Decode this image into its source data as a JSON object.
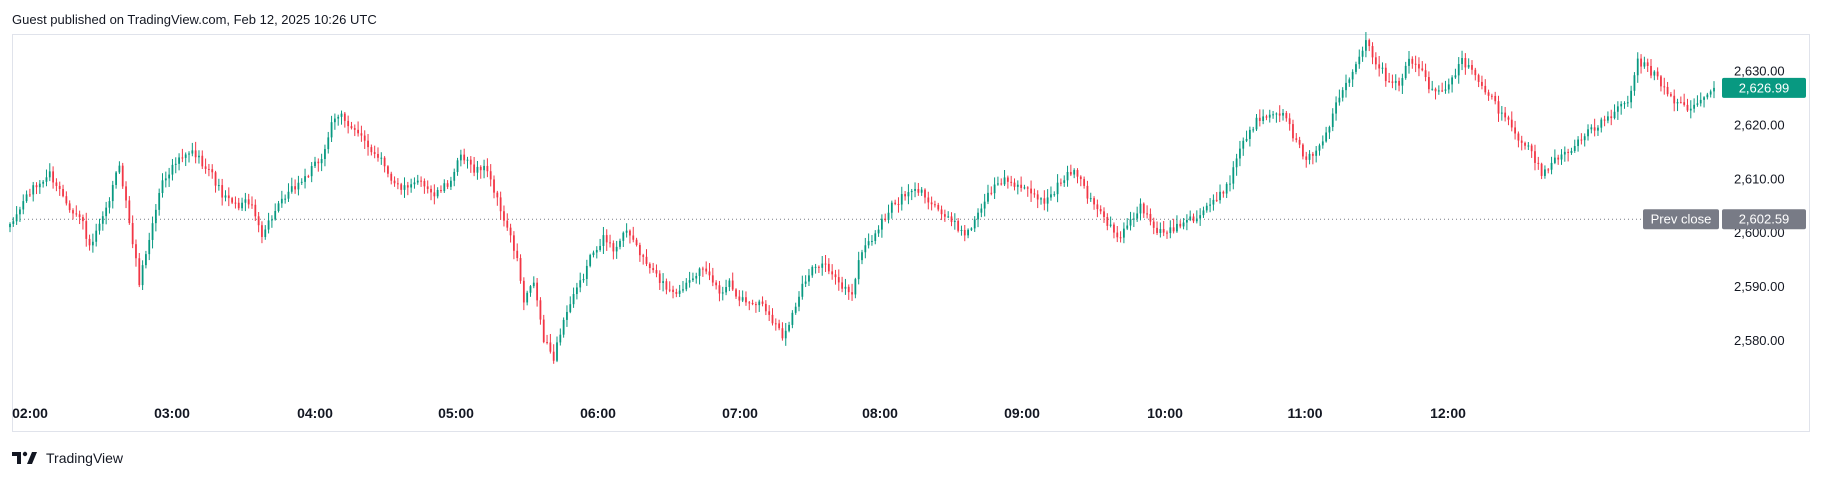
{
  "header": {
    "text": "Guest published on TradingView.com, Feb 12, 2025 10:26 UTC"
  },
  "footer": {
    "brand": "TradingView"
  },
  "colors": {
    "up": "#089981",
    "down": "#f23645",
    "prev_close_badge": "#787b86",
    "last_price_badge": "#089981"
  },
  "chart_data": {
    "type": "candlestick",
    "x_ticks": [
      "02:00",
      "03:00",
      "04:00",
      "05:00",
      "06:00",
      "07:00",
      "08:00",
      "09:00",
      "10:00",
      "11:00",
      "12:00"
    ],
    "y_ticks": [
      "2,580.00",
      "2,590.00",
      "2,600.00",
      "2,610.00",
      "2,620.00",
      "2,630.00"
    ],
    "y_tick_values": [
      2580,
      2590,
      2600,
      2610,
      2620,
      2630
    ],
    "ylim": [
      2569,
      2637
    ],
    "x_start": "01:45",
    "x_end": "12:36",
    "prev_close": {
      "label": "Prev close",
      "value": 2602.59,
      "value_label": "2,602.59"
    },
    "last_price": {
      "value": 2626.99,
      "value_label": "2,626.99"
    },
    "path_anchors": [
      [
        0,
        2601
      ],
      [
        5,
        2607
      ],
      [
        12,
        2611
      ],
      [
        18,
        2605
      ],
      [
        22,
        2602
      ],
      [
        24,
        2597
      ],
      [
        29,
        2604
      ],
      [
        33,
        2613
      ],
      [
        36,
        2602
      ],
      [
        39,
        2591
      ],
      [
        42,
        2599
      ],
      [
        46,
        2610
      ],
      [
        50,
        2613
      ],
      [
        55,
        2615
      ],
      [
        60,
        2612
      ],
      [
        64,
        2607
      ],
      [
        68,
        2605
      ],
      [
        72,
        2606
      ],
      [
        76,
        2600
      ],
      [
        80,
        2604
      ],
      [
        85,
        2608
      ],
      [
        90,
        2611
      ],
      [
        94,
        2614
      ],
      [
        97,
        2620
      ],
      [
        100,
        2622
      ],
      [
        104,
        2619
      ],
      [
        108,
        2616
      ],
      [
        112,
        2614
      ],
      [
        116,
        2609
      ],
      [
        120,
        2608
      ],
      [
        124,
        2610
      ],
      [
        128,
        2607
      ],
      [
        132,
        2609
      ],
      [
        136,
        2614
      ],
      [
        140,
        2612
      ],
      [
        144,
        2612
      ],
      [
        147,
        2606
      ],
      [
        150,
        2601
      ],
      [
        153,
        2595
      ],
      [
        155,
        2587
      ],
      [
        158,
        2591
      ],
      [
        161,
        2580
      ],
      [
        164,
        2577
      ],
      [
        167,
        2584
      ],
      [
        170,
        2588
      ],
      [
        173,
        2592
      ],
      [
        176,
        2597
      ],
      [
        179,
        2599
      ],
      [
        182,
        2597
      ],
      [
        185,
        2600
      ],
      [
        188,
        2599
      ],
      [
        191,
        2595
      ],
      [
        195,
        2592
      ],
      [
        198,
        2590
      ],
      [
        202,
        2589
      ],
      [
        205,
        2592
      ],
      [
        208,
        2593
      ],
      [
        211,
        2592
      ],
      [
        214,
        2589
      ],
      [
        217,
        2591
      ],
      [
        220,
        2588
      ],
      [
        223,
        2587
      ],
      [
        227,
        2587
      ],
      [
        230,
        2584
      ],
      [
        233,
        2581
      ],
      [
        236,
        2585
      ],
      [
        239,
        2590
      ],
      [
        242,
        2593
      ],
      [
        245,
        2595
      ],
      [
        248,
        2592
      ],
      [
        251,
        2590
      ],
      [
        254,
        2589
      ],
      [
        257,
        2597
      ],
      [
        260,
        2599
      ],
      [
        263,
        2602
      ],
      [
        266,
        2605
      ],
      [
        270,
        2607
      ],
      [
        274,
        2608
      ],
      [
        278,
        2606
      ],
      [
        282,
        2603
      ],
      [
        286,
        2601
      ],
      [
        289,
        2600
      ],
      [
        292,
        2604
      ],
      [
        296,
        2608
      ],
      [
        300,
        2610
      ],
      [
        304,
        2609
      ],
      [
        308,
        2607
      ],
      [
        312,
        2606
      ],
      [
        315,
        2608
      ],
      [
        319,
        2611
      ],
      [
        322,
        2611
      ],
      [
        325,
        2607
      ],
      [
        328,
        2605
      ],
      [
        331,
        2602
      ],
      [
        334,
        2599
      ],
      [
        337,
        2601
      ],
      [
        341,
        2605
      ],
      [
        344,
        2602
      ],
      [
        347,
        2600
      ],
      [
        351,
        2601
      ],
      [
        355,
        2603
      ],
      [
        358,
        2603
      ],
      [
        361,
        2605
      ],
      [
        364,
        2606
      ],
      [
        368,
        2610
      ],
      [
        371,
        2616
      ],
      [
        375,
        2620
      ],
      [
        378,
        2622
      ],
      [
        382,
        2623
      ],
      [
        385,
        2621
      ],
      [
        388,
        2617
      ],
      [
        391,
        2613
      ],
      [
        394,
        2616
      ],
      [
        397,
        2618
      ],
      [
        400,
        2624
      ],
      [
        403,
        2628
      ],
      [
        406,
        2632
      ],
      [
        409,
        2636
      ],
      [
        412,
        2632
      ],
      [
        415,
        2629
      ],
      [
        419,
        2628
      ],
      [
        422,
        2632
      ],
      [
        425,
        2631
      ],
      [
        428,
        2627
      ],
      [
        431,
        2626
      ],
      [
        434,
        2628
      ],
      [
        438,
        2632
      ],
      [
        441,
        2630
      ],
      [
        444,
        2627
      ],
      [
        447,
        2625
      ],
      [
        450,
        2622
      ],
      [
        453,
        2620
      ],
      [
        456,
        2617
      ],
      [
        459,
        2615
      ],
      [
        462,
        2611
      ],
      [
        465,
        2613
      ],
      [
        469,
        2615
      ],
      [
        473,
        2617
      ],
      [
        477,
        2619
      ],
      [
        481,
        2621
      ],
      [
        485,
        2623
      ],
      [
        488,
        2624
      ],
      [
        491,
        2632
      ],
      [
        495,
        2630
      ],
      [
        499,
        2627
      ],
      [
        503,
        2624
      ],
      [
        507,
        2623
      ],
      [
        511,
        2625
      ],
      [
        514,
        2627
      ]
    ]
  }
}
